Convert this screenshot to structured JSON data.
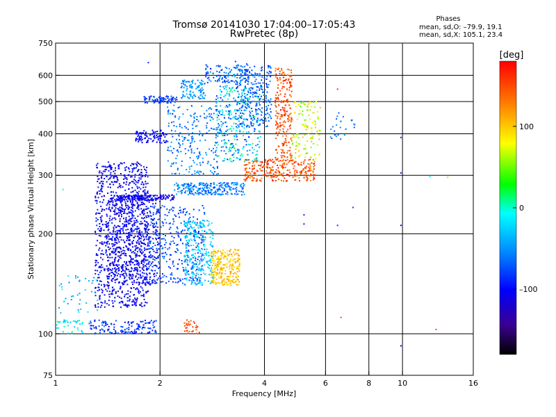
{
  "chart_data": {
    "type": "scatter",
    "title": "Tromsø 20141030 17:04:00–17:05:43",
    "subtitle": "RwPretec (8p)",
    "xlabel": "Frequency [MHz]",
    "ylabel": "Stationary phase Virtual Height [km]",
    "x_scale": "log",
    "y_scale": "log",
    "xlim": [
      1,
      16
    ],
    "ylim": [
      75,
      750
    ],
    "x_ticks": [
      1,
      2,
      4,
      6,
      8,
      10,
      16
    ],
    "x_tick_labels": [
      "1",
      "2",
      "4",
      "6",
      "8",
      "10",
      "16"
    ],
    "x_gridlines": [
      2,
      4,
      6,
      8,
      10
    ],
    "y_ticks": [
      75,
      100,
      200,
      300,
      400,
      500,
      600,
      750
    ],
    "y_tick_labels": [
      "75",
      "100",
      "200",
      "300",
      "400",
      "500",
      "600",
      "750"
    ],
    "y_gridlines": [
      100,
      200,
      300,
      400,
      500,
      600
    ],
    "grid": true,
    "legend_title": "Phases",
    "legend_lines": [
      "mean, sd,O: –79.9, 19.1",
      "mean, sd,X: 105.1, 23.4"
    ],
    "legend_placement": "top-right",
    "colorbar": {
      "label": "[deg]",
      "range": [
        -180,
        180
      ],
      "ticks": [
        100,
        0,
        -100
      ],
      "tick_labels": [
        "100",
        "0",
        "–100"
      ],
      "colormap": "rainbow"
    },
    "clusters": [
      {
        "f": [
          1.3,
          1.85
        ],
        "h": [
          120,
          330
        ],
        "p": [
          -125,
          -85
        ],
        "n": 950
      },
      {
        "f": [
          1.4,
          2.0
        ],
        "h": [
          140,
          260
        ],
        "p": [
          -120,
          -90
        ],
        "n": 450
      },
      {
        "f": [
          1.85,
          2.7
        ],
        "h": [
          140,
          245
        ],
        "p": [
          -95,
          -60
        ],
        "n": 350
      },
      {
        "f": [
          2.35,
          2.85
        ],
        "h": [
          140,
          220
        ],
        "p": [
          -45,
          -5
        ],
        "n": 260
      },
      {
        "f": [
          2.8,
          3.4
        ],
        "h": [
          140,
          180
        ],
        "p": [
          85,
          120
        ],
        "n": 260
      },
      {
        "f": [
          1.5,
          2.2
        ],
        "h": [
          252,
          262
        ],
        "p": [
          -125,
          -95
        ],
        "n": 160
      },
      {
        "f": [
          2.2,
          3.5
        ],
        "h": [
          262,
          285
        ],
        "p": [
          -85,
          -35
        ],
        "n": 240
      },
      {
        "f": [
          3.5,
          5.6
        ],
        "h": [
          288,
          335
        ],
        "p": [
          120,
          175
        ],
        "n": 280
      },
      {
        "f": [
          1.7,
          2.1
        ],
        "h": [
          375,
          410
        ],
        "p": [
          -115,
          -90
        ],
        "n": 90
      },
      {
        "f": [
          2.1,
          3.0
        ],
        "h": [
          300,
          490
        ],
        "p": [
          -80,
          -40
        ],
        "n": 230
      },
      {
        "f": [
          2.9,
          3.9
        ],
        "h": [
          330,
          560
        ],
        "p": [
          -90,
          20
        ],
        "n": 330
      },
      {
        "f": [
          3.3,
          4.2
        ],
        "h": [
          420,
          650
        ],
        "p": [
          -85,
          -50
        ],
        "n": 250
      },
      {
        "f": [
          4.3,
          4.8
        ],
        "h": [
          330,
          630
        ],
        "p": [
          125,
          175
        ],
        "n": 230
      },
      {
        "f": [
          4.8,
          5.8
        ],
        "h": [
          330,
          500
        ],
        "p": [
          40,
          110
        ],
        "n": 120
      },
      {
        "f": [
          1.8,
          2.25
        ],
        "h": [
          495,
          520
        ],
        "p": [
          -95,
          -70
        ],
        "n": 80
      },
      {
        "f": [
          2.3,
          2.7
        ],
        "h": [
          510,
          580
        ],
        "p": [
          -65,
          -35
        ],
        "n": 100
      },
      {
        "f": [
          2.7,
          3.6
        ],
        "h": [
          570,
          645
        ],
        "p": [
          -95,
          -40
        ],
        "n": 120
      },
      {
        "f": [
          1.25,
          1.95
        ],
        "h": [
          100,
          110
        ],
        "p": [
          -105,
          -60
        ],
        "n": 140
      },
      {
        "f": [
          1.0,
          1.2
        ],
        "h": [
          100,
          110
        ],
        "p": [
          -40,
          10
        ],
        "n": 40
      },
      {
        "f": [
          2.35,
          2.6
        ],
        "h": [
          100,
          110
        ],
        "p": [
          140,
          165
        ],
        "n": 30
      },
      {
        "f": [
          1.02,
          1.35
        ],
        "h": [
          115,
          150
        ],
        "p": [
          -60,
          -10
        ],
        "n": 40
      },
      {
        "f": [
          6.2,
          7.3
        ],
        "h": [
          380,
          470
        ],
        "p": [
          -75,
          -35
        ],
        "n": 25
      }
    ],
    "points": [
      {
        "f": 1.05,
        "h": 272,
        "p": -10
      },
      {
        "f": 1.85,
        "h": 655,
        "p": -90
      },
      {
        "f": 3.3,
        "h": 660,
        "p": -85
      },
      {
        "f": 5.2,
        "h": 228,
        "p": -95
      },
      {
        "f": 5.2,
        "h": 214,
        "p": -90
      },
      {
        "f": 6.5,
        "h": 212,
        "p": -85
      },
      {
        "f": 6.5,
        "h": 545,
        "p": 160
      },
      {
        "f": 6.65,
        "h": 112,
        "p": 150
      },
      {
        "f": 7.2,
        "h": 240,
        "p": -80
      },
      {
        "f": 9.9,
        "h": 390,
        "p": -85
      },
      {
        "f": 9.9,
        "h": 305,
        "p": -95
      },
      {
        "f": 9.9,
        "h": 212,
        "p": -100
      },
      {
        "f": 9.9,
        "h": 92,
        "p": -110
      },
      {
        "f": 12.0,
        "h": 297,
        "p": -5
      },
      {
        "f": 12.5,
        "h": 103,
        "p": 150
      },
      {
        "f": 13.5,
        "h": 296,
        "p": 100
      }
    ]
  }
}
